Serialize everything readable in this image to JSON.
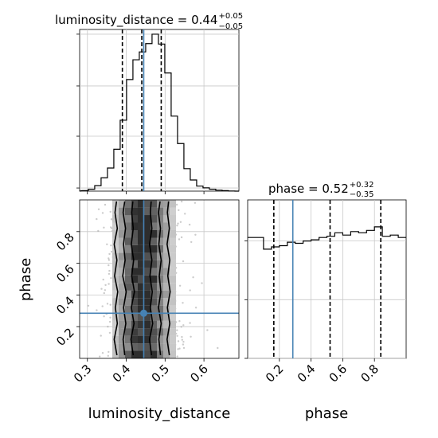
{
  "chart_data": {
    "type": "corner",
    "parameters": [
      "luminosity_distance",
      "phase"
    ],
    "truth": {
      "luminosity_distance": 0.445,
      "phase": 0.285
    },
    "colors": {
      "truth": "#4682b4",
      "hist": "#000000",
      "grid": "#c8c8c8",
      "points": "#9a9a9a"
    },
    "panels": {
      "luminosity_distance_hist": {
        "title": {
          "name": "luminosity_distance",
          "value": "0.44",
          "plus": "+0.05",
          "minus": "−0.05"
        },
        "xlim": [
          0.28,
          0.69
        ],
        "ylim": [
          0,
          1.03
        ],
        "grid": true,
        "bins": {
          "start": 0.286,
          "width": 0.0164
        },
        "values": [
          0.003,
          0.012,
          0.035,
          0.085,
          0.147,
          0.267,
          0.452,
          0.711,
          0.837,
          0.887,
          0.94,
          1.0,
          0.937,
          0.753,
          0.478,
          0.303,
          0.143,
          0.071,
          0.032,
          0.021,
          0.012,
          0.006,
          0.003,
          0.001,
          0.0
        ],
        "quantiles": [
          0.39,
          0.44,
          0.49
        ],
        "yticks": [
          0.02,
          0.35,
          0.67,
          1.0
        ]
      },
      "phase_hist": {
        "title": {
          "name": "phase",
          "value": "0.52",
          "plus": "+0.32",
          "minus": "−0.35"
        },
        "xlim": [
          0.0,
          1.0
        ],
        "ylim": [
          0,
          1.35
        ],
        "grid": true,
        "bins": {
          "start": 0.0,
          "width": 0.05
        },
        "values": [
          1.03,
          1.03,
          0.93,
          0.95,
          0.96,
          0.99,
          0.98,
          1.0,
          1.01,
          1.03,
          1.04,
          1.07,
          1.05,
          1.08,
          1.07,
          1.09,
          1.12,
          1.04,
          1.05,
          1.03
        ],
        "quantiles": [
          0.165,
          0.52,
          0.84
        ],
        "yticks": [
          0.0,
          0.5,
          1.0
        ],
        "xticks": [
          0.2,
          0.4,
          0.6,
          0.8
        ],
        "xlabel": "phase"
      },
      "joint": {
        "xlim": [
          0.28,
          0.69
        ],
        "ylim": [
          0.0,
          1.0
        ],
        "grid": true,
        "xticks": [
          0.3,
          0.4,
          0.5,
          0.6
        ],
        "yticks": [
          0.2,
          0.4,
          0.6,
          0.8
        ],
        "xlabel": "luminosity_distance",
        "ylabel": "phase",
        "contours": [
          {
            "level": "outer",
            "x_left": [
              0.376,
              0.369,
              0.377,
              0.372,
              0.378,
              0.37,
              0.376,
              0.369,
              0.377,
              0.371,
              0.375
            ],
            "x_right": [
              0.511,
              0.505,
              0.512,
              0.506,
              0.513,
              0.507,
              0.512,
              0.505,
              0.511,
              0.506,
              0.509
            ]
          },
          {
            "level": "middle",
            "x_left": [
              0.396,
              0.392,
              0.399,
              0.393,
              0.4,
              0.391,
              0.397,
              0.393,
              0.398,
              0.392,
              0.396
            ],
            "x_right": [
              0.488,
              0.484,
              0.49,
              0.483,
              0.489,
              0.485,
              0.49,
              0.484,
              0.488,
              0.483,
              0.487
            ]
          },
          {
            "level": "inner",
            "x_left": [
              0.418,
              0.412,
              0.42,
              0.413,
              0.421,
              0.414,
              0.419,
              0.413,
              0.418,
              0.414,
              0.417
            ],
            "x_right": [
              0.465,
              0.46,
              0.468,
              0.462,
              0.467,
              0.461,
              0.466,
              0.46,
              0.466,
              0.462,
              0.464
            ]
          }
        ],
        "contour_y": [
          0.02,
          0.12,
          0.22,
          0.32,
          0.42,
          0.52,
          0.62,
          0.72,
          0.82,
          0.92,
          0.99
        ]
      }
    }
  }
}
